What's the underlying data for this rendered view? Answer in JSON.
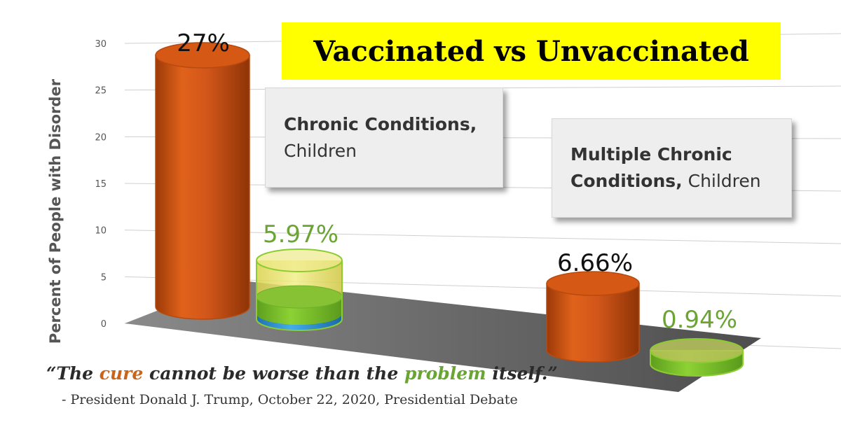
{
  "chart_data": {
    "type": "bar",
    "title": "Vaccinated vs Unvaccinated",
    "ylabel": "Percent of People with Disorder",
    "ylim": [
      0,
      30
    ],
    "yticks": [
      "0",
      "5",
      "10",
      "15",
      "20",
      "25",
      "30"
    ],
    "grid": true,
    "categories": [
      "Chronic Conditions, Children",
      "Multiple Chronic Conditions, Children"
    ],
    "series": [
      {
        "values": [
          27,
          6.66
        ],
        "labels": [
          "27%",
          "6.66%"
        ],
        "color": "#d85a14"
      },
      {
        "values": [
          5.97,
          0.94
        ],
        "labels": [
          "5.97%",
          "0.94%"
        ],
        "color": "#8ccc32"
      }
    ]
  },
  "title": "Vaccinated vs Unvaccinated",
  "category_boxes": [
    {
      "bold": "Chronic Conditions,",
      "regular": "Children"
    },
    {
      "bold": "Multiple Chronic",
      "bold2": "Conditions,",
      "regular": "Children"
    }
  ],
  "quote": {
    "open": "“The ",
    "word1": "cure",
    "mid": " cannot be worse than the ",
    "word2": "problem",
    "close": " itself.”"
  },
  "attribution": "- President Donald J. Trump, October 22, 2020, Presidential Debate",
  "colors": {
    "title_background": "#ffff00",
    "series1": "#d85a14",
    "series2": "#8ccc32",
    "series2_fill_top": "#e8e070",
    "series2_base": "#3a9ad6",
    "floor": "#6e6e6e"
  }
}
